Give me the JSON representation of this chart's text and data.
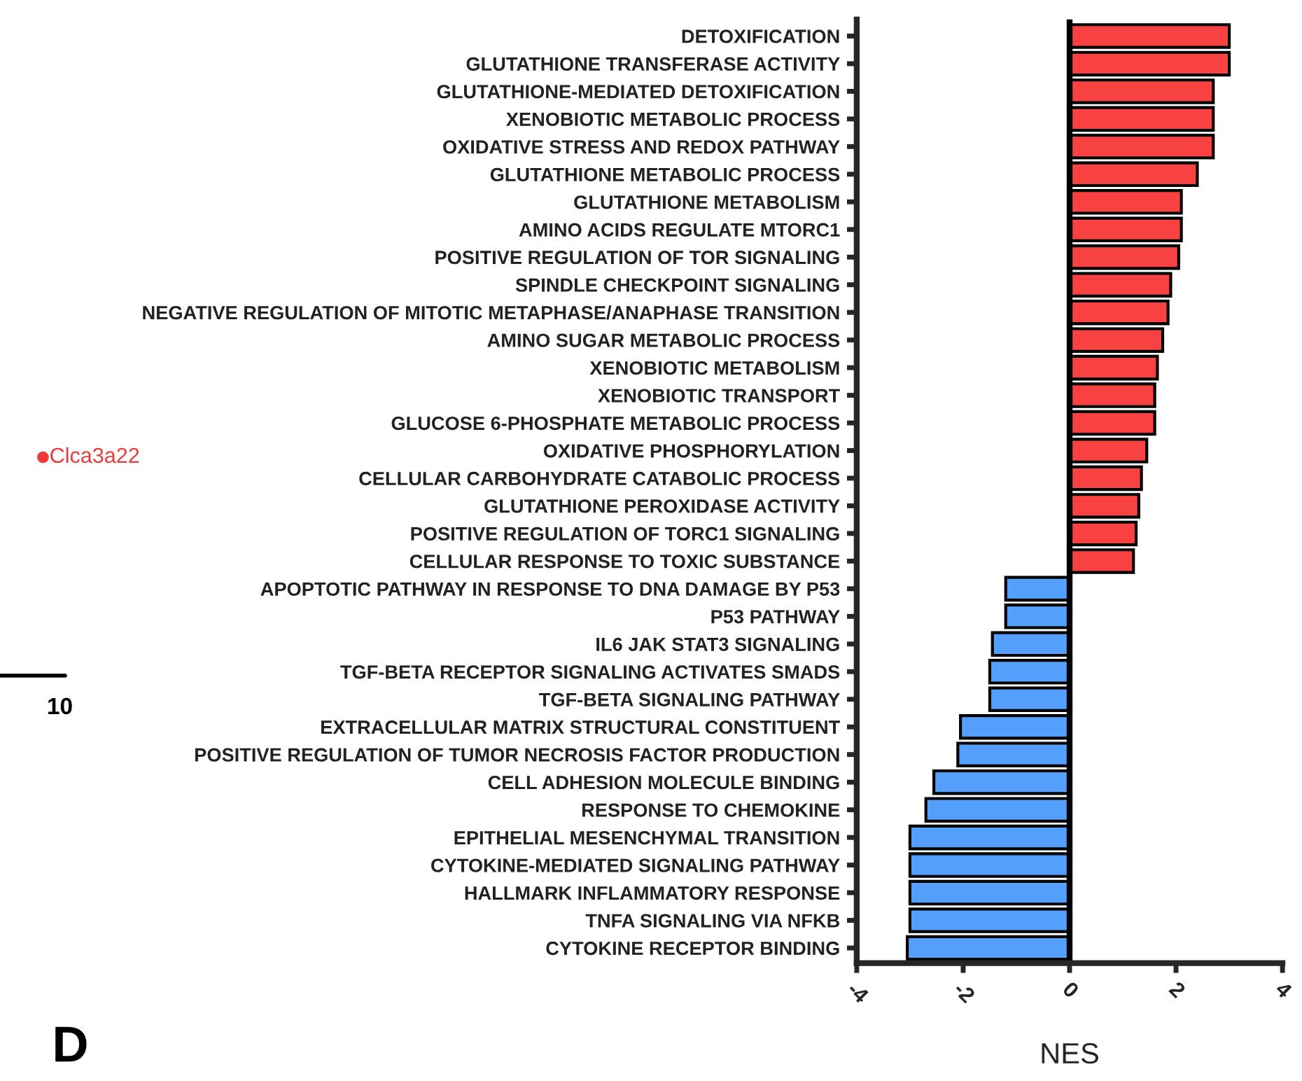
{
  "chart_data": {
    "type": "bar",
    "orientation": "horizontal",
    "xlabel": "NES",
    "categories": [
      "DETOXIFICATION",
      "GLUTATHIONE TRANSFERASE ACTIVITY",
      "GLUTATHIONE-MEDIATED DETOXIFICATION",
      "XENOBIOTIC METABOLIC PROCESS",
      "OXIDATIVE STRESS AND REDOX PATHWAY",
      "GLUTATHIONE METABOLIC PROCESS",
      "GLUTATHIONE METABOLISM",
      "AMINO ACIDS REGULATE MTORC1",
      "POSITIVE REGULATION OF TOR SIGNALING",
      "SPINDLE CHECKPOINT SIGNALING",
      "NEGATIVE REGULATION OF MITOTIC METAPHASE/ANAPHASE TRANSITION",
      "AMINO SUGAR METABOLIC PROCESS",
      "XENOBIOTIC METABOLISM",
      "XENOBIOTIC TRANSPORT",
      "GLUCOSE 6-PHOSPHATE METABOLIC PROCESS",
      "OXIDATIVE PHOSPHORYLATION",
      "CELLULAR CARBOHYDRATE CATABOLIC PROCESS",
      "GLUTATHIONE PEROXIDASE ACTIVITY",
      "POSITIVE REGULATION OF TORC1 SIGNALING",
      "CELLULAR RESPONSE TO TOXIC SUBSTANCE",
      "APOPTOTIC PATHWAY IN RESPONSE TO DNA DAMAGE BY P53",
      "P53 PATHWAY",
      "IL6 JAK STAT3 SIGNALING",
      "TGF-BETA RECEPTOR SIGNALING ACTIVATES SMADS",
      "TGF-BETA SIGNALING PATHWAY",
      "EXTRACELLULAR MATRIX STRUCTURAL CONSTITUENT",
      "POSITIVE REGULATION OF TUMOR NECROSIS FACTOR PRODUCTION",
      "CELL ADHESION MOLECULE BINDING",
      "RESPONSE TO CHEMOKINE",
      "EPITHELIAL MESENCHYMAL TRANSITION",
      "CYTOKINE-MEDIATED SIGNALING PATHWAY",
      "HALLMARK INFLAMMATORY RESPONSE",
      "TNFA SIGNALING VIA NFKB",
      "CYTOKINE RECEPTOR BINDING"
    ],
    "values": [
      3.0,
      3.0,
      2.7,
      2.7,
      2.7,
      2.4,
      2.1,
      2.1,
      2.05,
      1.9,
      1.85,
      1.75,
      1.65,
      1.6,
      1.6,
      1.45,
      1.35,
      1.3,
      1.25,
      1.2,
      -1.2,
      -1.2,
      -1.45,
      -1.5,
      -1.5,
      -2.05,
      -2.1,
      -2.55,
      -2.7,
      -3.0,
      -3.0,
      -3.0,
      -3.0,
      -3.05
    ],
    "colors": [
      "#f84141",
      "#f84141",
      "#f84141",
      "#f84141",
      "#f84141",
      "#f84141",
      "#f84141",
      "#f84141",
      "#f84141",
      "#f84141",
      "#f84141",
      "#f84141",
      "#f84141",
      "#f84141",
      "#f84141",
      "#f84141",
      "#f84141",
      "#f84141",
      "#f84141",
      "#f84141",
      "#559ffc",
      "#559ffc",
      "#559ffc",
      "#559ffc",
      "#559ffc",
      "#559ffc",
      "#559ffc",
      "#559ffc",
      "#559ffc",
      "#559ffc",
      "#559ffc",
      "#559ffc",
      "#559ffc",
      "#559ffc"
    ],
    "xlim": [
      -4,
      4
    ],
    "xticks": [
      {
        "value": -4,
        "label": "-4"
      },
      {
        "value": -2,
        "label": "-2"
      },
      0,
      2,
      4
    ],
    "ref_lines": [
      {
        "axis": "x",
        "value": 0,
        "color": "#000000"
      }
    ],
    "annotations": [
      "D",
      "Clca3a22",
      "10"
    ],
    "grid": false,
    "legend": false
  }
}
